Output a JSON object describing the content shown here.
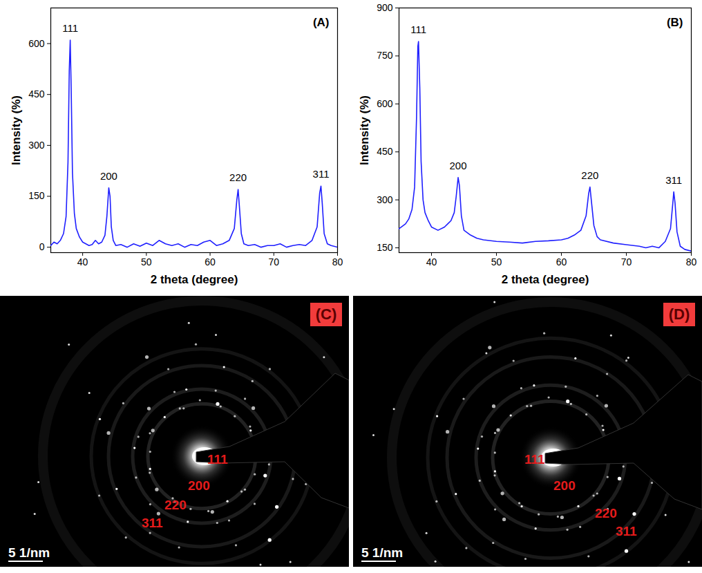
{
  "chart_data": [
    {
      "type": "line",
      "panel": "(A)",
      "x_label": "2 theta (degree)",
      "y_label": "Intensity (%)",
      "xlim": [
        35,
        80
      ],
      "xticks": [
        40,
        50,
        60,
        70,
        80
      ],
      "ylim": [
        -16,
        705
      ],
      "yticks": [
        0,
        150,
        300,
        450,
        600
      ],
      "grid": false,
      "color": "#1f1fff",
      "x": [
        35,
        35.5,
        36,
        36.5,
        37,
        37.4,
        37.7,
        37.9,
        38.05,
        38.2,
        38.4,
        38.7,
        39,
        39.5,
        40,
        40.5,
        41,
        41.5,
        42,
        42.5,
        43,
        43.5,
        43.8,
        44.1,
        44.3,
        44.5,
        44.8,
        45.2,
        46,
        47,
        48,
        49,
        50,
        51,
        52,
        53,
        54,
        55,
        56,
        57,
        58,
        59,
        60,
        61,
        62,
        63,
        63.8,
        64.2,
        64.4,
        64.6,
        64.9,
        65.3,
        66,
        67,
        68,
        69,
        70,
        71,
        72,
        73,
        74,
        75,
        76,
        76.8,
        77.2,
        77.4,
        77.6,
        77.9,
        78.4,
        79,
        80
      ],
      "values": [
        5,
        15,
        10,
        20,
        40,
        90,
        250,
        520,
        610,
        470,
        220,
        100,
        55,
        30,
        15,
        10,
        5,
        8,
        20,
        10,
        15,
        35,
        90,
        175,
        150,
        60,
        20,
        5,
        8,
        0,
        10,
        3,
        12,
        5,
        20,
        10,
        5,
        10,
        0,
        8,
        5,
        15,
        20,
        5,
        10,
        20,
        55,
        140,
        170,
        120,
        40,
        10,
        5,
        8,
        0,
        5,
        5,
        10,
        0,
        5,
        8,
        5,
        20,
        60,
        160,
        180,
        130,
        40,
        10,
        5,
        0
      ],
      "annotations": [
        {
          "text": "111",
          "x": 38.05,
          "y": 610
        },
        {
          "text": "200",
          "x": 44.1,
          "y": 175
        },
        {
          "text": "220",
          "x": 64.4,
          "y": 170
        },
        {
          "text": "311",
          "x": 77.4,
          "y": 180
        }
      ]
    },
    {
      "type": "line",
      "panel": "(B)",
      "x_label": "2 theta (degree)",
      "y_label": "Intensity (%)",
      "xlim": [
        35,
        80
      ],
      "xticks": [
        40,
        50,
        60,
        70,
        80
      ],
      "ylim": [
        135,
        900
      ],
      "yticks": [
        150,
        300,
        450,
        600,
        750,
        900
      ],
      "grid": false,
      "color": "#1f1fff",
      "x": [
        35,
        36,
        36.5,
        37,
        37.4,
        37.7,
        37.9,
        38.0,
        38.2,
        38.4,
        38.7,
        39,
        39.5,
        40,
        41,
        42,
        42.5,
        43,
        43.5,
        43.8,
        44.1,
        44.3,
        44.6,
        45,
        46,
        47,
        48,
        50,
        52,
        54,
        56,
        58,
        60,
        61,
        62,
        63,
        63.8,
        64.2,
        64.4,
        64.6,
        65,
        65.5,
        66,
        68,
        70,
        72,
        73,
        74,
        75,
        76,
        76.8,
        77.2,
        77.3,
        77.5,
        77.8,
        78.3,
        79,
        80
      ],
      "values": [
        210,
        225,
        240,
        270,
        340,
        560,
        780,
        795,
        650,
        420,
        300,
        260,
        235,
        215,
        205,
        215,
        225,
        235,
        260,
        310,
        370,
        345,
        250,
        205,
        190,
        180,
        175,
        170,
        168,
        165,
        170,
        172,
        175,
        180,
        190,
        205,
        250,
        320,
        340,
        300,
        220,
        185,
        175,
        165,
        160,
        155,
        150,
        155,
        150,
        170,
        210,
        300,
        325,
        290,
        200,
        155,
        145,
        140
      ],
      "annotations": [
        {
          "text": "111",
          "x": 38.0,
          "y": 795
        },
        {
          "text": "200",
          "x": 44.1,
          "y": 370
        },
        {
          "text": "220",
          "x": 64.4,
          "y": 340
        },
        {
          "text": "311",
          "x": 77.3,
          "y": 325
        }
      ]
    }
  ],
  "diffraction_images": [
    {
      "panel": "(C)",
      "ring_labels": [
        "111",
        "200",
        "220",
        "311"
      ],
      "scale_bar": "5 1/nm"
    },
    {
      "panel": "(D)",
      "ring_labels": [
        "111",
        "200",
        "220",
        "311"
      ],
      "scale_bar": "5 1/nm"
    }
  ]
}
